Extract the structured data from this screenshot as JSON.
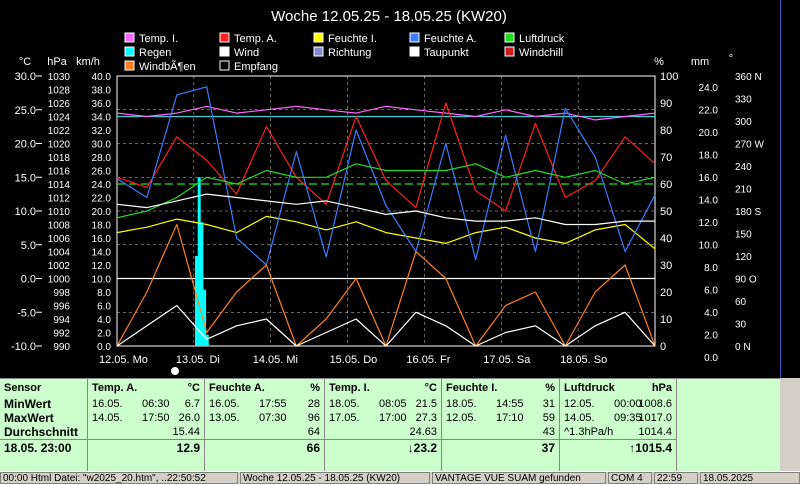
{
  "chart_data": {
    "type": "line",
    "title": "Woche 12.05.25 - 18.05.25 (KW20)",
    "legend": [
      {
        "name": "Temp. I.",
        "color": "#ff66ff"
      },
      {
        "name": "Temp. A.",
        "color": "#ff2020"
      },
      {
        "name": "Feuchte I.",
        "color": "#ffff00"
      },
      {
        "name": "Feuchte A.",
        "color": "#3c7cff"
      },
      {
        "name": "Luftdruck",
        "color": "#22dd22"
      },
      {
        "name": "Regen",
        "color": "#00ffff"
      },
      {
        "name": "Wind",
        "color": "#ffffff"
      },
      {
        "name": "Richtung",
        "color": "#8888cc"
      },
      {
        "name": "Taupunkt",
        "color": "#ffffff"
      },
      {
        "name": "Windchill",
        "color": "#cc2020"
      },
      {
        "name": "WindbÃ¶en",
        "color": "#ff8020"
      },
      {
        "name": "Empfang",
        "color": "#000000"
      }
    ],
    "axis_units": {
      "temp": "°C",
      "pressure": "hPa",
      "wind": "km/h",
      "percent": "%",
      "rain": "mm",
      "direction": "°"
    },
    "temp_ticks": [
      "30.0",
      "25.0",
      "20.0",
      "15.0",
      "10.0",
      "5.0",
      "0.0",
      "-5.0",
      "-10.0"
    ],
    "pressure_ticks": [
      "1030",
      "1028",
      "1026",
      "1024",
      "1022",
      "1020",
      "1018",
      "1016",
      "1014",
      "1012",
      "1010",
      "1008",
      "1006",
      "1004",
      "1002",
      "1000",
      "998",
      "996",
      "994",
      "992",
      "990"
    ],
    "wind_ticks": [
      "40.0",
      "38.0",
      "36.0",
      "34.0",
      "32.0",
      "30.0",
      "28.0",
      "26.0",
      "24.0",
      "22.0",
      "20.0",
      "18.0",
      "16.0",
      "14.0",
      "12.0",
      "10.0",
      "8.0",
      "6.0",
      "4.0",
      "2.0",
      "0.0"
    ],
    "percent_ticks": [
      "100",
      "90",
      "80",
      "70",
      "60",
      "50",
      "40",
      "30",
      "20",
      "10",
      "0"
    ],
    "rain_ticks": [
      "24.0",
      "22.0",
      "20.0",
      "18.0",
      "16.0",
      "14.0",
      "12.0",
      "10.0",
      "8.0",
      "6.0",
      "4.0",
      "2.0",
      "0.0"
    ],
    "direction_ticks": [
      "360 N",
      "330",
      "300",
      "270 W",
      "240",
      "210",
      "180 S",
      "150",
      "120",
      "90 O",
      "60",
      "30",
      "0 N"
    ],
    "x_labels": [
      "12.05. Mo",
      "13.05. Di",
      "14.05. Mi",
      "15.05. Do",
      "16.05. Fr",
      "17.05. Sa",
      "18.05. So"
    ],
    "ylim_temp": [
      -10,
      30
    ],
    "ylim_pressure": [
      990,
      1030
    ],
    "ylim_percent": [
      0,
      100
    ],
    "ylim_rain": [
      0,
      24
    ],
    "ylim_wind": [
      0,
      40
    ],
    "series": [
      {
        "name": "Temp. I.",
        "color": "#ff66ff",
        "axis": "temp",
        "values": [
          24.5,
          24.0,
          24.5,
          25.5,
          24.5,
          25.0,
          25.5,
          25.0,
          24.5,
          25.5,
          25.0,
          24.5,
          24.0,
          25.0,
          24.0,
          24.5,
          23.5,
          24.0,
          24.5
        ]
      },
      {
        "name": "Temp. A.",
        "color": "#ff2020",
        "axis": "temp",
        "values": [
          15.0,
          13.5,
          21.0,
          17.5,
          12.5,
          22.5,
          15.0,
          11.0,
          24.0,
          14.5,
          10.5,
          26.0,
          13.0,
          10.0,
          23.0,
          12.0,
          14.5,
          21.0,
          17.0
        ]
      },
      {
        "name": "Feuchte I.",
        "color": "#ffff00",
        "axis": "percent",
        "values": [
          42,
          44,
          47,
          45,
          42,
          48,
          46,
          43,
          46,
          42,
          40,
          38,
          42,
          44,
          40,
          38,
          43,
          45,
          36
        ]
      },
      {
        "name": "Feuchte A.",
        "color": "#3c7cff",
        "axis": "percent",
        "values": [
          62,
          55,
          93,
          96,
          40,
          30,
          72,
          33,
          80,
          52,
          35,
          75,
          32,
          78,
          35,
          88,
          70,
          35,
          56
        ]
      },
      {
        "name": "Luftdruck",
        "color": "#22dd22",
        "axis": "pressure",
        "values": [
          1009,
          1010,
          1012,
          1015,
          1014,
          1016,
          1015,
          1015,
          1017,
          1016,
          1016,
          1016,
          1017,
          1015,
          1016,
          1015,
          1016,
          1014,
          1015
        ]
      },
      {
        "name": "Taupunkt",
        "color": "#ffffff",
        "axis": "temp",
        "values": [
          11.0,
          10.5,
          11.5,
          12.5,
          12.0,
          11.5,
          11.0,
          11.5,
          10.5,
          9.5,
          10.0,
          9.0,
          8.5,
          8.5,
          9.0,
          8.0,
          8.0,
          8.5,
          8.5
        ]
      },
      {
        "name": "WindbÃ¶en",
        "color": "#ff8020",
        "axis": "wind",
        "values": [
          0,
          8,
          18,
          2,
          8,
          12,
          0,
          4,
          10,
          0,
          14,
          10,
          0,
          6,
          8,
          0,
          8,
          12,
          0
        ]
      },
      {
        "name": "Wind",
        "color": "#ffffff",
        "axis": "wind",
        "values": [
          0,
          3,
          6,
          1,
          3,
          4,
          0,
          2,
          4,
          0,
          5,
          3,
          0,
          2,
          3,
          0,
          3,
          5,
          0
        ]
      }
    ],
    "rain_bars": {
      "x": [
        14.5,
        15.0,
        15.5,
        16.0,
        16.5
      ],
      "values": [
        8,
        15,
        11,
        5,
        1
      ]
    },
    "reference_lines": [
      {
        "color": "#22dd22",
        "axis": "pressure",
        "value": 1014,
        "style": "dashed"
      },
      {
        "color": "#3ccfcf",
        "axis": "pressure",
        "value": 1024,
        "style": "solid"
      }
    ]
  },
  "stats": {
    "sensor_col": {
      "title": "Sensor",
      "rows": [
        "MinWert",
        "MaxWert",
        "Durchschnitt"
      ],
      "time": "18.05. 23:00"
    },
    "temp_a": {
      "title": "Temp. A.",
      "unit": "°C",
      "min_date": "16.05.",
      "min_time": "06:30",
      "min": "6.7",
      "max_date": "14.05.",
      "max_time": "17:50",
      "max": "26.0",
      "avg": "15.44",
      "current": "12.9"
    },
    "feuchte_a": {
      "title": "Feuchte A.",
      "unit": "%",
      "min_date": "16.05.",
      "min_time": "17:55",
      "min": "28",
      "max_date": "13.05.",
      "max_time": "07:30",
      "max": "96",
      "avg": "64",
      "current": "66"
    },
    "temp_i": {
      "title": "Temp. I.",
      "unit": "°C",
      "min_date": "18.05.",
      "min_time": "08:05",
      "min": "21.5",
      "max_date": "17.05.",
      "max_time": "17:00",
      "max": "27.3",
      "avg": "24.63",
      "current": "↓23.2"
    },
    "feuchte_i": {
      "title": "Feuchte I.",
      "unit": "%",
      "min_date": "18.05.",
      "min_time": "14:55",
      "min": "31",
      "max_date": "12.05.",
      "max_time": "17:10",
      "max": "59",
      "avg": "43",
      "current": "37"
    },
    "luftdruck": {
      "title": "Luftdruck",
      "unit": "hPa",
      "min_date": "12.05.",
      "min_time": "00:00",
      "min": "1008.6",
      "max_date": "14.05.",
      "max_time": "09:35",
      "max": "1017.0",
      "trend": "^1.3hPa/h",
      "avg": "1014.4",
      "current": "↑1015.4"
    }
  },
  "statusbar": {
    "f1": "00:00 Html Datei: \"w2025_20.htm\", ..22:50:52",
    "f2": "Woche 12.05.25 - 18.05.25 (KW20)",
    "f3": "VANTAGE VUE SUAM gefunden",
    "f4": "COM 4",
    "f5": "22:59",
    "f6": "18.05.2025"
  },
  "colors": {
    "stats_bg": "#ccffcc",
    "chart_bg": "#000000",
    "frame": "#d4d0c8"
  }
}
